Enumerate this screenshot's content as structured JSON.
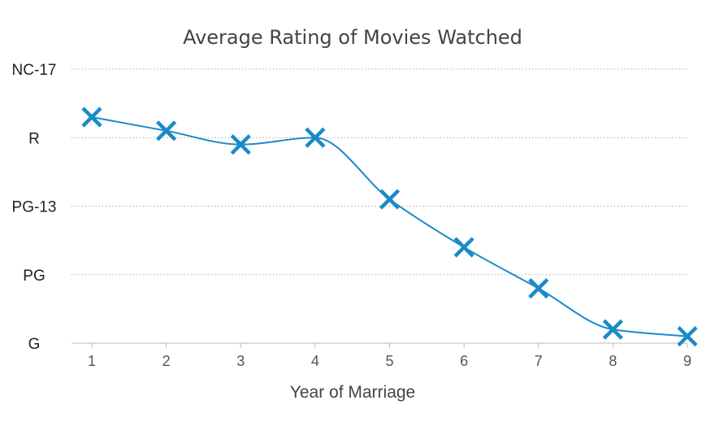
{
  "chart_data": {
    "type": "line",
    "title": "Average Rating of Movies Watched",
    "xlabel": "Year of Marriage",
    "ylabel": "",
    "x": [
      1,
      2,
      3,
      4,
      5,
      6,
      7,
      8,
      9
    ],
    "y_categories": [
      "G",
      "PG",
      "PG-13",
      "R",
      "NC-17"
    ],
    "ylim": [
      0,
      4
    ],
    "xlim": [
      1,
      9
    ],
    "series": [
      {
        "values": [
          3.3,
          3.1,
          2.9,
          3.0,
          2.1,
          1.4,
          0.8,
          0.2,
          0.1
        ],
        "color": "#1a8ac8",
        "marker": "x",
        "smooth": true
      }
    ],
    "grid": true
  }
}
